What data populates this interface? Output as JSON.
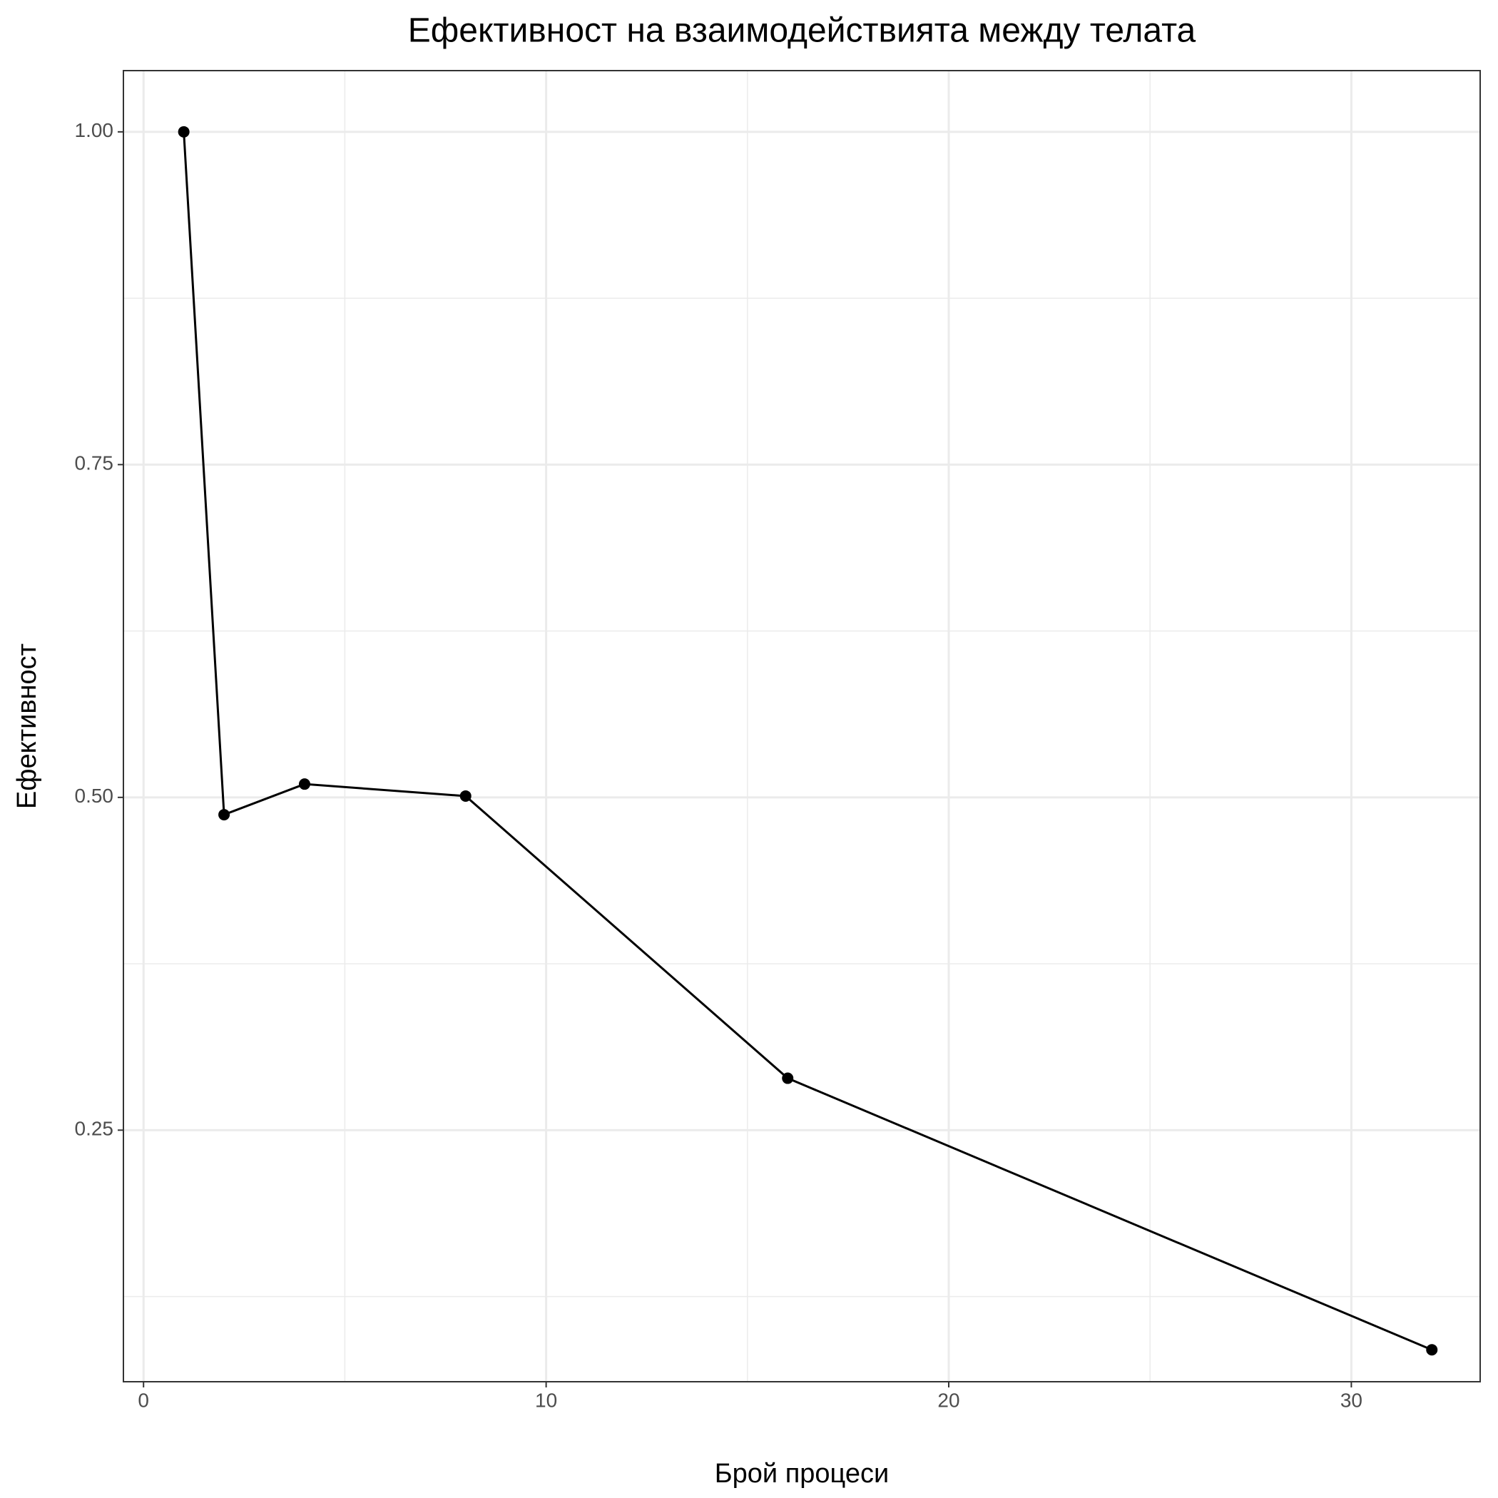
{
  "chart_data": {
    "type": "line",
    "title": "Ефективност на взаимодействията между телата",
    "x_label": "Брой процеси",
    "y_label": "Ефективност",
    "x": [
      1,
      2,
      4,
      8,
      16,
      32
    ],
    "series": [
      {
        "color": "#000000",
        "values": [
          1.0,
          0.487,
          0.51,
          0.501,
          0.289,
          0.085
        ]
      }
    ],
    "xlim": [
      -0.5,
      33.2
    ],
    "ylim": [
      0.061,
      1.046
    ],
    "xticks": [
      0,
      10,
      20,
      30
    ],
    "yticks": [
      {
        "value": 0.25,
        "label": "0.25"
      },
      {
        "value": 0.5,
        "label": "0.50"
      },
      {
        "value": 0.75,
        "label": "0.75"
      },
      {
        "value": 1,
        "label": "1.00"
      }
    ],
    "grid": true
  }
}
